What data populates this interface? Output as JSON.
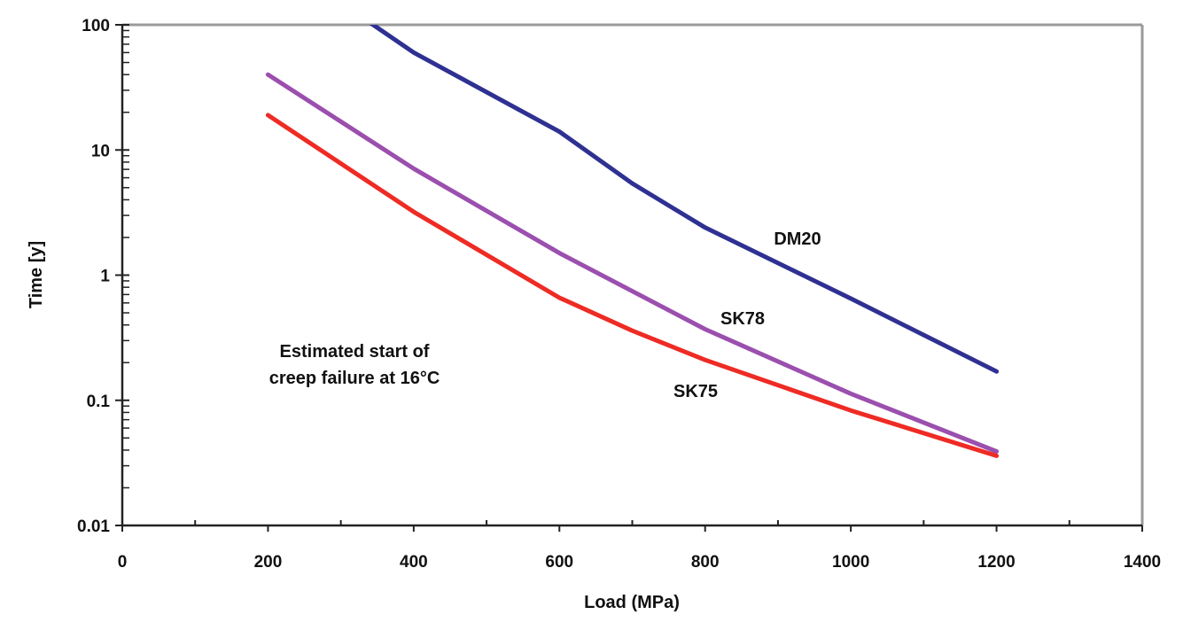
{
  "chart_data": {
    "type": "line",
    "title": "",
    "xlabel": "Load (MPa)",
    "ylabel": "Time [y]",
    "xlim": [
      0,
      1400
    ],
    "ylim": [
      0.01,
      100
    ],
    "yscale": "log",
    "grid": false,
    "legend": "none (series labeled inline)",
    "x_ticks": [
      "0",
      "200",
      "400",
      "600",
      "800",
      "1000",
      "1200",
      "1400"
    ],
    "y_ticks": [
      "0.01",
      "0.1",
      "1",
      "10",
      "100"
    ],
    "annotation": [
      "Estimated start of",
      "creep failure at 16°C"
    ],
    "series": [
      {
        "name": "DM20",
        "color": "#2e3192",
        "x": [
          300,
          400,
          600,
          700,
          800,
          1000,
          1200
        ],
        "y": [
          150,
          60,
          14,
          5.4,
          2.4,
          0.65,
          0.17
        ]
      },
      {
        "name": "SK78",
        "color": "#9b4fae",
        "x": [
          200,
          400,
          600,
          800,
          1000,
          1200
        ],
        "y": [
          40,
          7.1,
          1.5,
          0.37,
          0.113,
          0.039
        ]
      },
      {
        "name": "SK75",
        "color": "#ee2b24",
        "x": [
          200,
          400,
          600,
          700,
          800,
          1000,
          1200
        ],
        "y": [
          19,
          3.2,
          0.66,
          0.36,
          0.21,
          0.083,
          0.036
        ]
      }
    ]
  }
}
